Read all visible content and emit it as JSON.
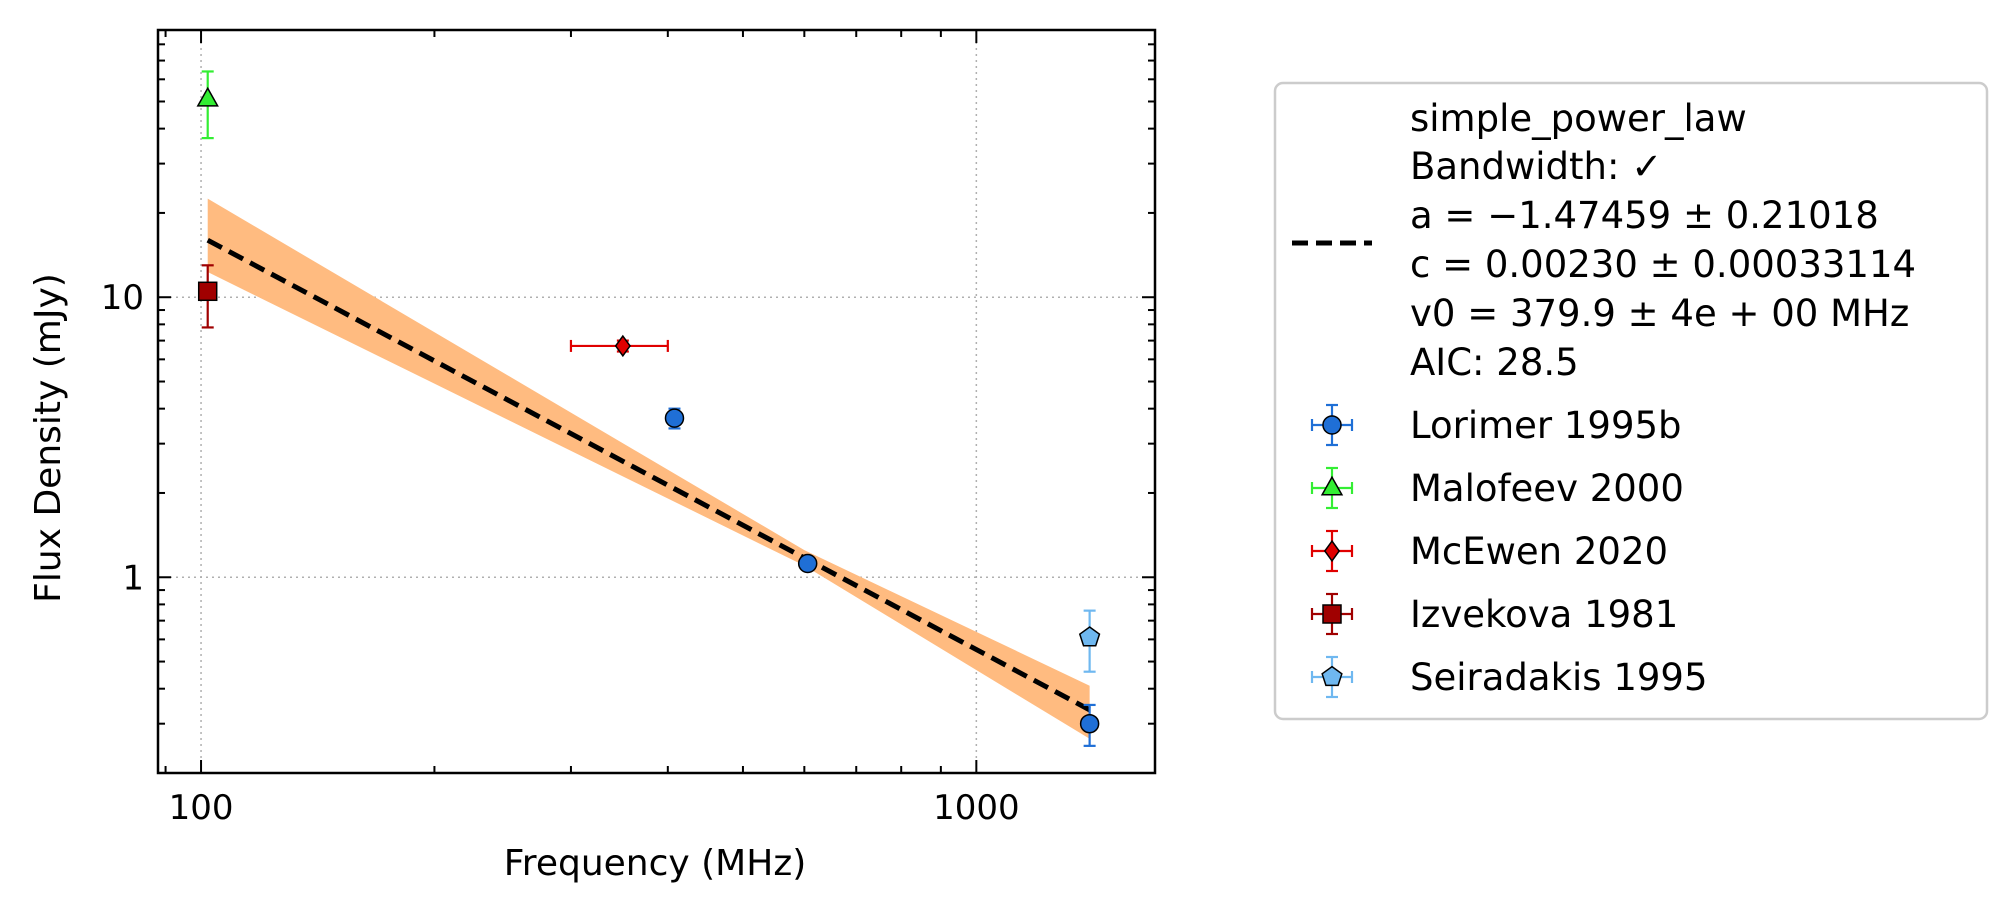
{
  "chart_data": {
    "type": "scatter",
    "title": "",
    "xlabel": "Frequency (MHz)",
    "ylabel": "Flux Density (mJy)",
    "xscale": "log",
    "yscale": "log",
    "xlim": [
      88,
      1700
    ],
    "ylim": [
      0.2,
      90
    ],
    "grid": true,
    "legend_position": "right, outside plot",
    "x_ticks": [
      {
        "value": 100,
        "label": "100"
      },
      {
        "value": 1000,
        "label": "1000"
      }
    ],
    "y_ticks": [
      {
        "value": 1,
        "label": "1"
      },
      {
        "value": 10,
        "label": "10"
      }
    ],
    "fit": {
      "name": "simple_power_law",
      "bandwidth": "Bandwidth: ✓",
      "a_text": "a = −1.47459 ± 0.21018",
      "c_text": "c = 0.00230 ± 0.00033114",
      "v0_text": "v0 = 379.9 ± 4e + 00 MHz",
      "aic_text": "AIC: 28.5",
      "a": -1.47459,
      "c": 0.0023,
      "v0": 379.9,
      "x_range": [
        102,
        1400
      ],
      "band": [
        {
          "x": 102,
          "low": 12.3,
          "high": 22.5
        },
        {
          "x": 600,
          "low": 1.1,
          "high": 1.25
        },
        {
          "x": 1400,
          "low": 0.265,
          "high": 0.41
        }
      ],
      "line_color": "#000000",
      "band_color": "#ffbb80"
    },
    "series": [
      {
        "name": "Lorimer 1995b",
        "marker": "circle",
        "color": "#1f6fd6",
        "ecolor": "#1f6fd6",
        "points": [
          {
            "x": 408,
            "y": 3.7,
            "yerr": [
              0.3,
              0.3
            ]
          },
          {
            "x": 606,
            "y": 1.12,
            "yerr": [
              0.04,
              0.04
            ]
          },
          {
            "x": 1400,
            "y": 0.3,
            "yerr": [
              0.05,
              0.05
            ]
          }
        ]
      },
      {
        "name": "Malofeev 2000",
        "marker": "triangle",
        "color": "#33ee33",
        "ecolor": "#33ee33",
        "points": [
          {
            "x": 102,
            "y": 51,
            "yerr": [
              14,
              13
            ]
          }
        ]
      },
      {
        "name": "McEwen 2020",
        "marker": "diamond",
        "color": "#e00000",
        "ecolor": "#e00000",
        "points": [
          {
            "x": 350,
            "y": 6.7,
            "yerr": [
              0.3,
              0.3
            ],
            "xerr": [
              50,
              50
            ]
          }
        ]
      },
      {
        "name": "Izvekova 1981",
        "marker": "square",
        "color": "#a00000",
        "ecolor": "#a00000",
        "points": [
          {
            "x": 102,
            "y": 10.5,
            "yerr": [
              2.7,
              2.5
            ]
          }
        ]
      },
      {
        "name": "Seiradakis 1995",
        "marker": "pentagon",
        "color": "#6fb8f0",
        "ecolor": "#6fb8f0",
        "points": [
          {
            "x": 1400,
            "y": 0.61,
            "yerr": [
              0.15,
              0.15
            ]
          }
        ]
      }
    ]
  }
}
